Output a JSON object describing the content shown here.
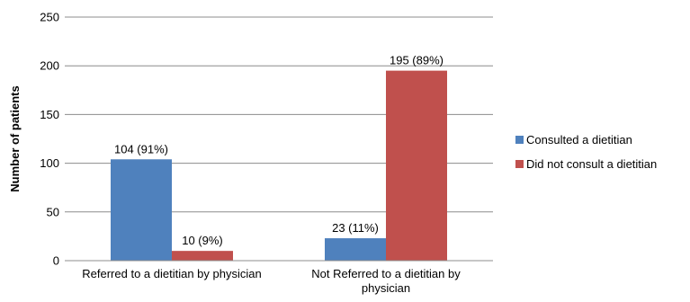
{
  "chart_data": {
    "type": "bar",
    "categories": [
      [
        "Referred to a dietitian by physician"
      ],
      [
        "Not Referred to a dietitian by",
        "physician"
      ]
    ],
    "series": [
      {
        "name": "Consulted a dietitian",
        "color": "#4f81bd",
        "values": [
          104,
          23
        ],
        "labels": [
          "104 (91%)",
          "23 (11%)"
        ]
      },
      {
        "name": "Did not consult a dietitian",
        "color": "#c0504d",
        "values": [
          10,
          195
        ],
        "labels": [
          "10 (9%)",
          "195 (89%)"
        ]
      }
    ],
    "title": "",
    "xlabel": "",
    "ylabel": "Number of patients",
    "ylim": [
      0,
      250
    ],
    "yticks": [
      0,
      50,
      100,
      150,
      200,
      250
    ],
    "grid": true,
    "legend": "right"
  }
}
